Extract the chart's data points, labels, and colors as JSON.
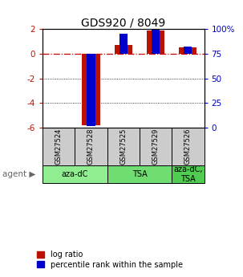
{
  "title": "GDS920 / 8049",
  "samples": [
    "GSM27524",
    "GSM27528",
    "GSM27525",
    "GSM27529",
    "GSM27526"
  ],
  "log_ratio": [
    0.0,
    -5.8,
    0.7,
    1.9,
    0.5
  ],
  "percentile_rank": [
    0.0,
    2.0,
    95.0,
    99.0,
    82.0
  ],
  "groups": [
    {
      "label": "aza-dC",
      "samples": [
        0,
        1
      ],
      "color": "#90ee90"
    },
    {
      "label": "TSA",
      "samples": [
        2,
        3
      ],
      "color": "#70dd70"
    },
    {
      "label": "aza-dC,\nTSA",
      "samples": [
        4
      ],
      "color": "#50cc50"
    }
  ],
  "ylim_left": [
    -6,
    2
  ],
  "ylim_right": [
    0,
    100
  ],
  "yticks_left": [
    -6,
    -4,
    -2,
    0,
    2
  ],
  "yticks_right": [
    0,
    25,
    50,
    75,
    100
  ],
  "red_color": "#bb1100",
  "blue_color": "#0000cc",
  "zero_line_color": "#cc0000",
  "sample_box_color": "#cccccc",
  "legend_items": [
    "log ratio",
    "percentile rank within the sample"
  ]
}
